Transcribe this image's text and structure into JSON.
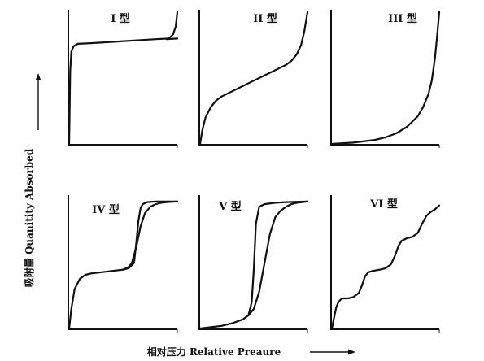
{
  "chart_data": {
    "type": "line",
    "xlabel": "相对压力 Relative Preaure",
    "ylabel": "吸附量 Quanitity Absorbed",
    "xlim": [
      0,
      1
    ],
    "ylim": [
      0,
      1
    ],
    "grid": false,
    "panels": [
      {
        "label": "I 型",
        "series": [
          {
            "x": [
              0,
              0.004,
              0.01,
              0.02,
              0.04,
              0.08,
              0.2,
              0.4,
              0.6,
              0.8,
              0.92,
              0.96,
              0.985,
              1.0
            ],
            "y": [
              0,
              0.2,
              0.55,
              0.7,
              0.74,
              0.76,
              0.765,
              0.775,
              0.785,
              0.795,
              0.8,
              0.83,
              0.89,
              1.0
            ]
          },
          {
            "x": [
              0.9,
              1.0
            ],
            "y": [
              0.795,
              0.8
            ]
          }
        ]
      },
      {
        "label": "II 型",
        "series": [
          {
            "x": [
              0,
              0.02,
              0.05,
              0.1,
              0.15,
              0.2,
              0.3,
              0.4,
              0.5,
              0.6,
              0.7,
              0.8,
              0.85,
              0.9,
              0.94,
              0.97,
              0.99,
              1.0
            ],
            "y": [
              0,
              0.1,
              0.2,
              0.28,
              0.33,
              0.36,
              0.4,
              0.44,
              0.48,
              0.52,
              0.56,
              0.6,
              0.63,
              0.68,
              0.75,
              0.85,
              0.95,
              1.0
            ]
          }
        ]
      },
      {
        "label": "III 型",
        "series": [
          {
            "x": [
              0,
              0.2,
              0.4,
              0.5,
              0.6,
              0.7,
              0.8,
              0.85,
              0.9,
              0.93,
              0.96,
              0.98,
              1.0
            ],
            "y": [
              0,
              0.01,
              0.03,
              0.05,
              0.08,
              0.13,
              0.21,
              0.28,
              0.38,
              0.48,
              0.65,
              0.82,
              1.0
            ]
          }
        ]
      },
      {
        "label": "IV 型",
        "series": [
          {
            "x": [
              0,
              0.02,
              0.05,
              0.1,
              0.15,
              0.2,
              0.3,
              0.4,
              0.5,
              0.55,
              0.58,
              0.62,
              0.66,
              0.7,
              0.75,
              0.8,
              0.85,
              0.9,
              1.0
            ],
            "y": [
              0,
              0.15,
              0.3,
              0.38,
              0.41,
              0.42,
              0.43,
              0.44,
              0.45,
              0.47,
              0.5,
              0.62,
              0.78,
              0.88,
              0.93,
              0.95,
              0.96,
              0.965,
              0.97
            ]
          },
          {
            "x": [
              0.5,
              0.55,
              0.6,
              0.62,
              0.64,
              0.66,
              0.68,
              0.72,
              0.8,
              1.0
            ],
            "y": [
              0.45,
              0.46,
              0.5,
              0.65,
              0.82,
              0.92,
              0.95,
              0.965,
              0.97,
              0.97
            ]
          }
        ]
      },
      {
        "label": "V 型",
        "series": [
          {
            "x": [
              0,
              0.1,
              0.2,
              0.3,
              0.4,
              0.45,
              0.5,
              0.55,
              0.6,
              0.65,
              0.7,
              0.75,
              0.8,
              0.85,
              0.9,
              0.95,
              1.0
            ],
            "y": [
              0,
              0.01,
              0.02,
              0.04,
              0.07,
              0.1,
              0.15,
              0.28,
              0.5,
              0.72,
              0.85,
              0.9,
              0.93,
              0.95,
              0.96,
              0.965,
              0.97
            ]
          },
          {
            "x": [
              0.45,
              0.48,
              0.5,
              0.52,
              0.55,
              0.6,
              0.7,
              0.8,
              1.0
            ],
            "y": [
              0.1,
              0.2,
              0.45,
              0.8,
              0.93,
              0.95,
              0.96,
              0.965,
              0.97
            ]
          }
        ]
      },
      {
        "label": "VI 型",
        "series": [
          {
            "x": [
              0,
              0.02,
              0.04,
              0.06,
              0.08,
              0.1,
              0.15,
              0.2,
              0.25,
              0.28,
              0.31,
              0.34,
              0.38,
              0.45,
              0.5,
              0.55,
              0.59,
              0.62,
              0.65,
              0.7,
              0.75,
              0.8,
              0.84,
              0.88,
              0.92,
              0.96,
              1.0
            ],
            "y": [
              0,
              0.08,
              0.16,
              0.2,
              0.22,
              0.23,
              0.23,
              0.24,
              0.27,
              0.33,
              0.4,
              0.43,
              0.44,
              0.45,
              0.46,
              0.49,
              0.56,
              0.63,
              0.67,
              0.69,
              0.7,
              0.73,
              0.8,
              0.86,
              0.89,
              0.91,
              0.94
            ]
          }
        ]
      }
    ]
  }
}
